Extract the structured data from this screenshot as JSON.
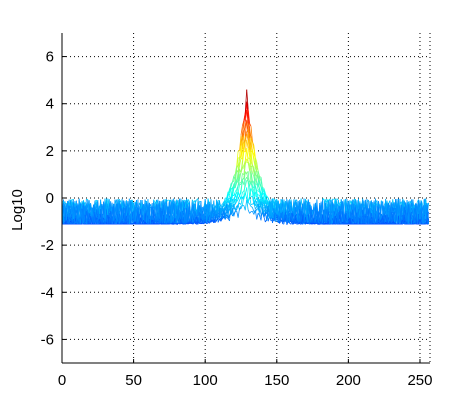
{
  "chart_data": {
    "type": "line",
    "title": "",
    "xlabel": "",
    "ylabel": "Log10",
    "xlim": [
      0,
      257
    ],
    "ylim": [
      -7,
      7
    ],
    "xticks": [
      0,
      50,
      100,
      150,
      200,
      250
    ],
    "xtick_labels": [
      "0",
      "50",
      "100",
      "150",
      "200",
      "250"
    ],
    "yticks": [
      -6,
      -4,
      -2,
      0,
      2,
      4,
      6
    ],
    "ytick_labels": [
      "-6",
      "-4",
      "-2",
      "0",
      "2",
      "4",
      "6"
    ],
    "grid": true,
    "box": false,
    "colormap": "jet",
    "color_range": [
      -2.5,
      4.5
    ],
    "peak": {
      "x": 129,
      "y": 4.5
    },
    "noise_floor": {
      "mean": -1.1,
      "min": -2.7,
      "max": -0.3
    },
    "series_count": 20,
    "points_per_series": 257
  }
}
